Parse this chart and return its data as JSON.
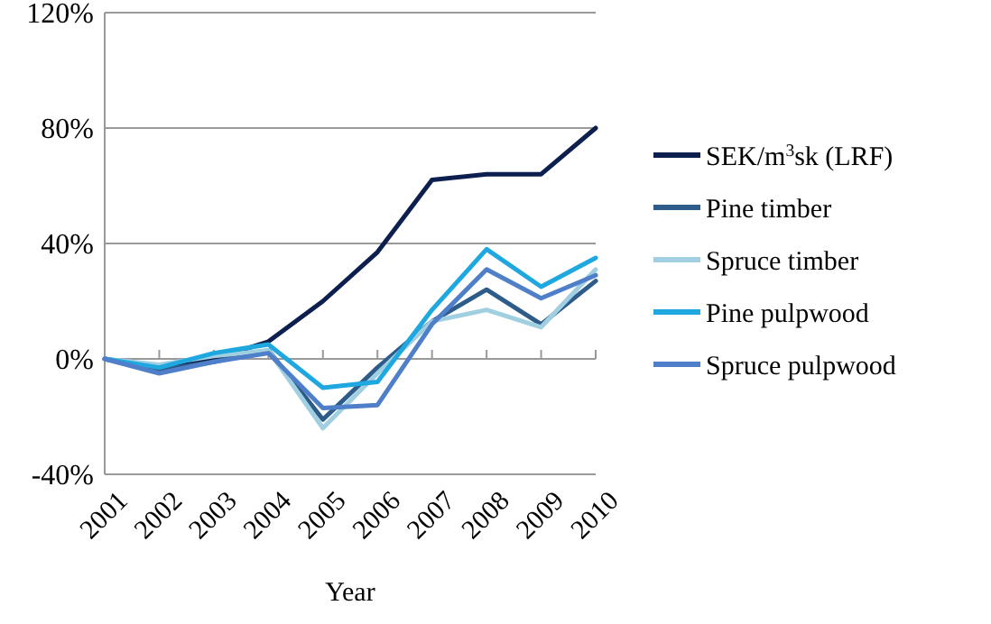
{
  "chart_data": {
    "type": "line",
    "xlabel": "Year",
    "categories": [
      "2001",
      "2002",
      "2003",
      "2004",
      "2005",
      "2006",
      "2007",
      "2008",
      "2009",
      "2010"
    ],
    "ylim": [
      -40,
      120
    ],
    "yticks": [
      {
        "value": -40,
        "label": "-40%"
      },
      {
        "value": 0,
        "label": "0%"
      },
      {
        "value": 40,
        "label": "40%"
      },
      {
        "value": 80,
        "label": "80%"
      },
      {
        "value": 120,
        "label": "120%"
      }
    ],
    "grid": "y",
    "legend": "right",
    "marker": "none",
    "line_style": "solid",
    "series": [
      {
        "name": "SEK/m$^{3}$sk (LRF)",
        "color": "#0d1f4f",
        "values": [
          0,
          -3,
          0,
          6,
          20,
          37,
          62,
          64,
          64,
          80
        ]
      },
      {
        "name": "Pine timber",
        "color": "#2e5c8a",
        "values": [
          0,
          -4,
          -1,
          3,
          -21,
          -3,
          13,
          24,
          12,
          27
        ]
      },
      {
        "name": "Spruce timber",
        "color": "#9fcfe0",
        "values": [
          0,
          -2,
          1,
          3,
          -24,
          -5,
          13,
          17,
          11,
          31
        ]
      },
      {
        "name": "Pine pulpwood",
        "color": "#1fa8e0",
        "values": [
          0,
          -3,
          2,
          5,
          -10,
          -8,
          17,
          38,
          25,
          35
        ]
      },
      {
        "name": "Spruce pulpwood",
        "color": "#4f7fc8",
        "values": [
          0,
          -5,
          -1,
          2,
          -17,
          -16,
          12,
          31,
          21,
          29
        ]
      }
    ]
  }
}
